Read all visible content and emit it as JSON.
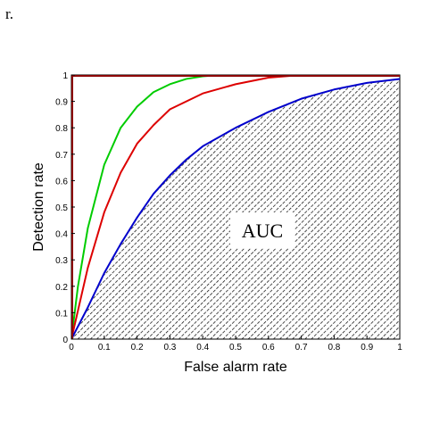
{
  "fragment_text": "r.",
  "chart_data": {
    "type": "line",
    "title": "",
    "xlabel": "False alarm rate",
    "ylabel": "Detection rate",
    "xlim": [
      0,
      1
    ],
    "ylim": [
      0,
      1
    ],
    "xticks": [
      "0",
      "0.1",
      "0.2",
      "0.3",
      "0.4",
      "0.5",
      "0.6",
      "0.7",
      "0.8",
      "0.9",
      "1"
    ],
    "yticks": [
      "0",
      "0.1",
      "0.2",
      "0.3",
      "0.4",
      "0.5",
      "0.6",
      "0.7",
      "0.8",
      "0.9",
      "1"
    ],
    "grid": false,
    "legend": "none",
    "annotation": "AUC",
    "shaded_area": "under blue curve (hatched)",
    "series": [
      {
        "color": "#00cc00",
        "x": [
          0,
          0.02,
          0.05,
          0.1,
          0.15,
          0.2,
          0.25,
          0.3,
          0.35,
          0.4,
          0.45
        ],
        "y": [
          0,
          0.2,
          0.42,
          0.66,
          0.8,
          0.88,
          0.935,
          0.965,
          0.985,
          0.995,
          1.0
        ]
      },
      {
        "color": "#dd0000",
        "x": [
          0,
          0.05,
          0.1,
          0.15,
          0.2,
          0.25,
          0.3,
          0.4,
          0.5,
          0.6,
          0.7
        ],
        "y": [
          0,
          0.27,
          0.48,
          0.63,
          0.74,
          0.81,
          0.87,
          0.93,
          0.965,
          0.99,
          1.0
        ]
      },
      {
        "color": "#0000cc",
        "x": [
          0,
          0.05,
          0.1,
          0.15,
          0.2,
          0.25,
          0.3,
          0.35,
          0.4,
          0.5,
          0.6,
          0.7,
          0.8,
          0.9,
          1.0
        ],
        "y": [
          0,
          0.12,
          0.25,
          0.36,
          0.46,
          0.55,
          0.62,
          0.68,
          0.73,
          0.8,
          0.86,
          0.91,
          0.945,
          0.97,
          0.985
        ]
      },
      {
        "color": "#8b0000",
        "x": [
          0,
          0,
          1
        ],
        "y": [
          0,
          1,
          1
        ]
      }
    ]
  }
}
